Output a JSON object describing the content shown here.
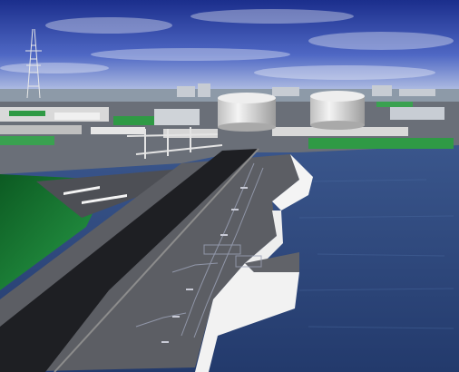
{
  "scene": {
    "subject": "",
    "palette": {
      "sky_top": "#1b2e8c",
      "sky_mid": "#4f68c4",
      "sky_horizon": "#c9d3ea",
      "sea": "#233a6c",
      "sea_light": "#3a568c",
      "pavement": "#5a5a5e",
      "road": "#202024",
      "wall": "#f2f2f2",
      "grass": "#1f8a3a",
      "tank": "#e3e3e3"
    }
  }
}
